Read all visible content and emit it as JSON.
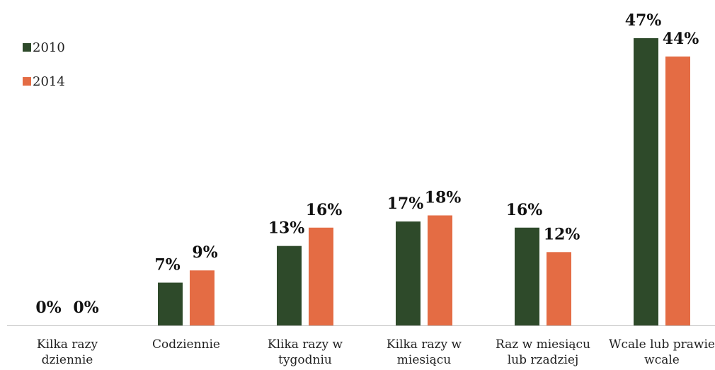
{
  "chart_data": {
    "type": "bar",
    "categories": [
      "Kilka razy dziennie",
      "Codziennie",
      "Klika razy w tygodniu",
      "Kilka razy w miesiącu",
      "Raz w miesiącu lub rzadziej",
      "Wcale lub prawie wcale"
    ],
    "series": [
      {
        "name": "2010",
        "color": "#2e4a2a",
        "values": [
          0,
          7,
          13,
          17,
          16,
          47
        ],
        "value_labels": [
          "0%",
          "7%",
          "13%",
          "17%",
          "16%",
          "47%"
        ]
      },
      {
        "name": "2014",
        "color": "#e46c44",
        "values": [
          0,
          9,
          16,
          18,
          12,
          44
        ],
        "value_labels": [
          "0%",
          "9%",
          "16%",
          "18%",
          "12%",
          "44%"
        ]
      }
    ],
    "ylim": [
      0,
      50
    ],
    "legend": "top-left"
  }
}
